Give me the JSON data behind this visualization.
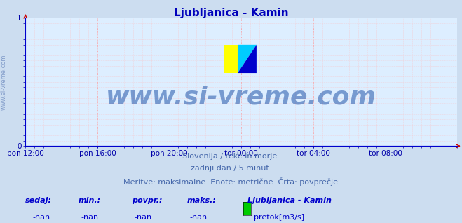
{
  "title": "Ljubljanica - Kamin",
  "title_color": "#0000bb",
  "title_fontsize": 11,
  "bg_color": "#ccddf0",
  "plot_bg_color": "#ddeeff",
  "grid_color_major": "#ff8888",
  "grid_color_minor": "#ffbbbb",
  "axis_color": "#0000cc",
  "tick_label_color": "#0000aa",
  "tick_fontsize": 7.5,
  "xlim": [
    0,
    1
  ],
  "ylim": [
    0,
    1
  ],
  "yticks": [
    0,
    1
  ],
  "xtick_labels": [
    "pon 12:00",
    "pon 16:00",
    "pon 20:00",
    "tor 00:00",
    "tor 04:00",
    "tor 08:00"
  ],
  "xtick_positions": [
    0.0,
    0.1667,
    0.3333,
    0.5,
    0.6667,
    0.8333
  ],
  "watermark_text": "www.si-vreme.com",
  "watermark_color": "#2255aa",
  "watermark_alpha": 0.55,
  "watermark_fontsize": 26,
  "sidebar_text": "www.si-vreme.com",
  "sidebar_color": "#4466aa",
  "sidebar_fontsize": 6,
  "subtitle_lines": [
    "Slovenija / reke in morje.",
    "zadnji dan / 5 minut.",
    "Meritve: maksimalne  Enote: metrične  Črta: povprečje"
  ],
  "subtitle_color": "#4466aa",
  "subtitle_fontsize": 8,
  "footer_labels": [
    "sedaj:",
    "min.:",
    "povpr.:",
    "maks.:"
  ],
  "footer_values": [
    "-nan",
    "-nan",
    "-nan",
    "-nan"
  ],
  "footer_station": "Ljubljanica - Kamin",
  "footer_legend_color": "#00cc00",
  "footer_legend_label": "pretok[m3/s]",
  "footer_color": "#0000cc",
  "footer_fontsize": 8,
  "arrow_color": "#cc0000",
  "line_color": "#0000cc",
  "logo_yellow": "#ffff00",
  "logo_cyan": "#00ccff",
  "logo_blue": "#0000cc"
}
